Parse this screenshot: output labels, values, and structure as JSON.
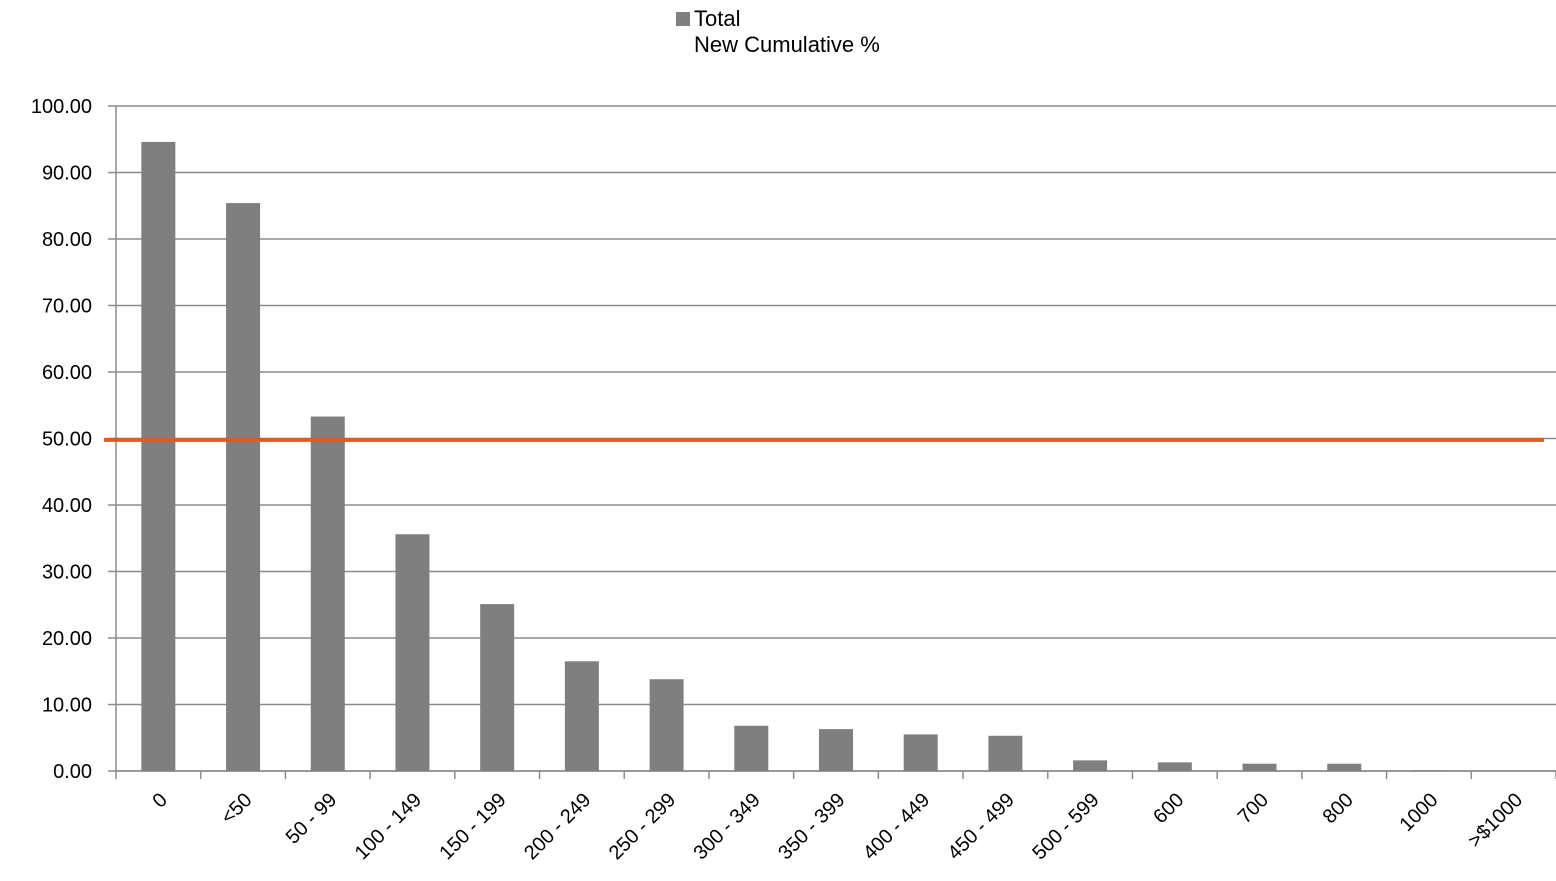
{
  "legend": {
    "bar_label": "Total",
    "line_label": "New Cumulative %"
  },
  "colors": {
    "bar": "#7f7f7f",
    "line": "#e15a20",
    "grid": "#8c8c8c",
    "axis": "#8c8c8c"
  },
  "chart_data": {
    "type": "bar",
    "title": "",
    "xlabel": "",
    "ylabel": "",
    "ylim": [
      0,
      100
    ],
    "yticks": [
      "0.00",
      "10.00",
      "20.00",
      "30.00",
      "40.00",
      "50.00",
      "60.00",
      "70.00",
      "80.00",
      "90.00",
      "100.00"
    ],
    "grid": true,
    "legend_position": "top-center",
    "categories": [
      "0",
      "<50",
      "50 - 99",
      "100 - 149",
      "150 - 199",
      "200 - 249",
      "250 - 299",
      "300 - 349",
      "350 - 399",
      "400 - 449",
      "450 - 499",
      "500 - 599",
      "600",
      "700",
      "800",
      "1000",
      ">$1000"
    ],
    "series": [
      {
        "name": "Total",
        "type": "bar",
        "values": [
          94.6,
          85.4,
          53.3,
          35.6,
          25.1,
          16.5,
          13.8,
          6.8,
          6.3,
          5.5,
          5.3,
          1.6,
          1.3,
          1.1,
          1.1,
          0.1,
          0
        ]
      },
      {
        "name": "New Cumulative %",
        "type": "line",
        "values": [
          49.8,
          49.8,
          49.8,
          49.8,
          49.8,
          49.8,
          49.8,
          49.8,
          49.8,
          49.8,
          49.8,
          49.8,
          49.8,
          49.8,
          49.8,
          49.8,
          49.8
        ]
      }
    ]
  }
}
